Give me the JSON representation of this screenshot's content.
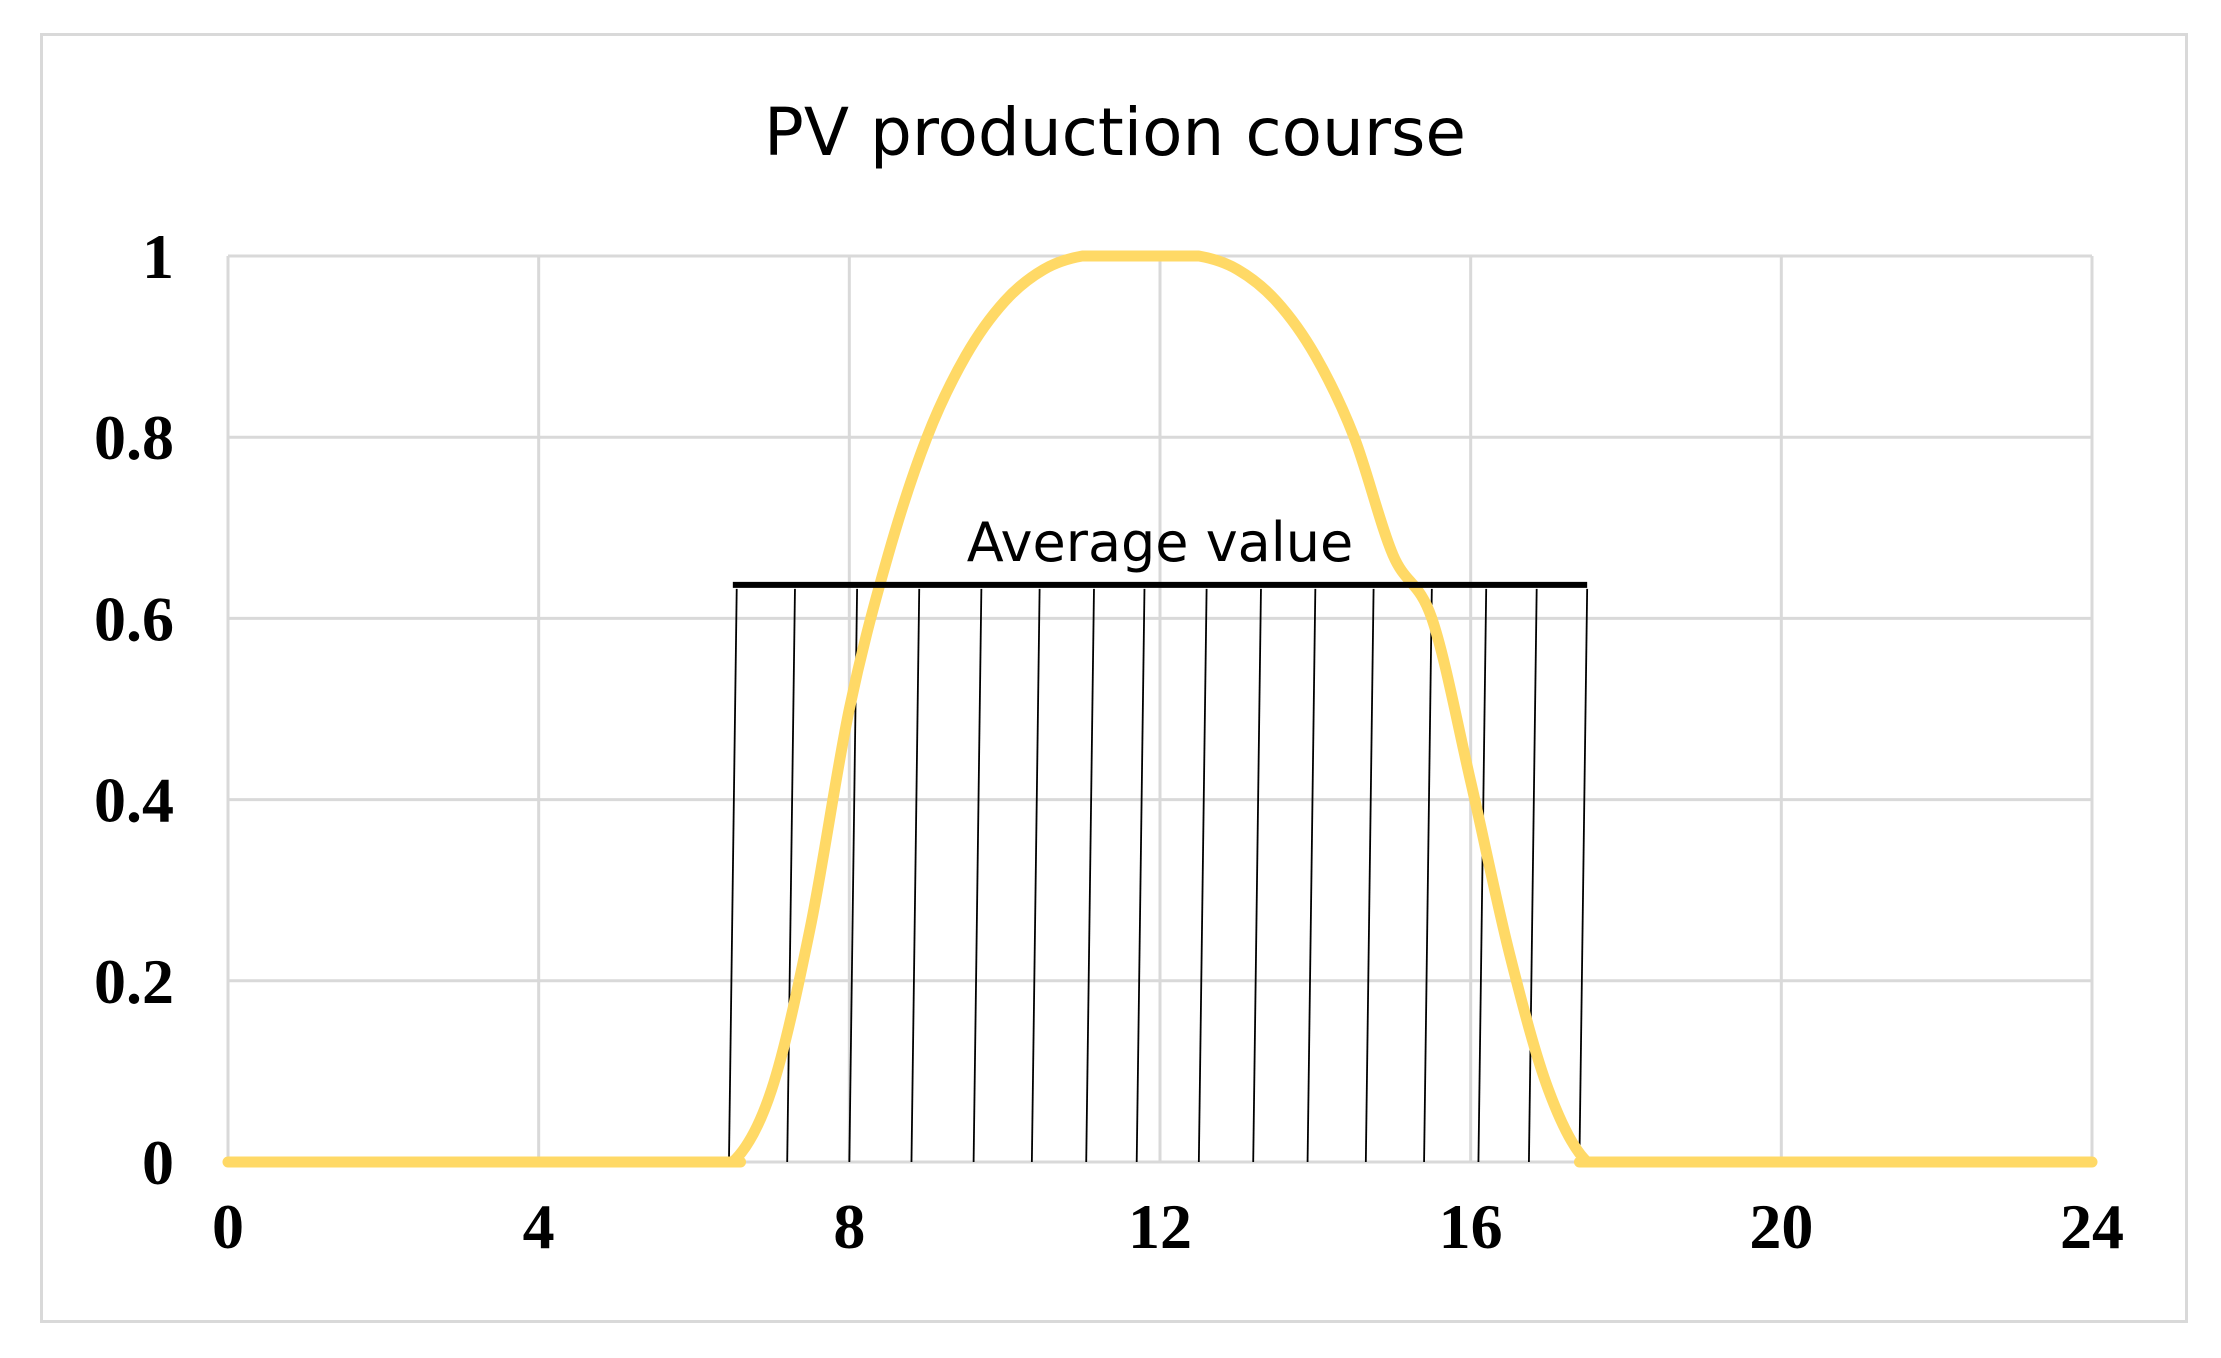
{
  "chart_data": {
    "type": "line",
    "title": "PV production course",
    "xlabel": "",
    "ylabel": "",
    "xlim": [
      0,
      24
    ],
    "ylim": [
      0,
      1
    ],
    "x_ticks": [
      0,
      4,
      8,
      12,
      16,
      20,
      24
    ],
    "x_tick_labels": [
      "0",
      "4",
      "8",
      "12",
      "16",
      "20",
      "24"
    ],
    "y_ticks": [
      0,
      0.2,
      0.4,
      0.6,
      0.8,
      1
    ],
    "y_tick_labels": [
      "0",
      "0.2",
      "0.4",
      "0.6",
      "0.8",
      "1"
    ],
    "grid": true,
    "series": [
      {
        "name": "PV production",
        "color": "#ffd966",
        "x": [
          0,
          6.0,
          6.5,
          7.0,
          7.5,
          8.0,
          8.5,
          9.0,
          9.5,
          10.0,
          10.5,
          11.0,
          11.5,
          12.0,
          12.5,
          13.0,
          13.5,
          14.0,
          14.5,
          15.0,
          15.5,
          16.0,
          16.5,
          17.0,
          17.5,
          18.0,
          24
        ],
        "values": [
          0,
          0,
          0,
          0.08,
          0.26,
          0.5,
          0.67,
          0.8,
          0.89,
          0.95,
          0.985,
          1.0,
          1.0,
          1.0,
          1.0,
          0.985,
          0.95,
          0.89,
          0.8,
          0.67,
          0.6,
          0.42,
          0.23,
          0.08,
          0,
          0,
          0
        ]
      }
    ],
    "average": {
      "label": "Average value",
      "value": 0.637,
      "x_start": 6.5,
      "x_end": 17.5,
      "color": "#000000",
      "hatch_x": [
        6.55,
        7.3,
        8.1,
        8.9,
        9.7,
        10.45,
        11.15,
        11.8,
        12.6,
        13.3,
        14.0,
        14.75,
        15.5,
        16.2,
        16.85,
        17.5
      ],
      "hatch_offset": -0.1
    }
  }
}
